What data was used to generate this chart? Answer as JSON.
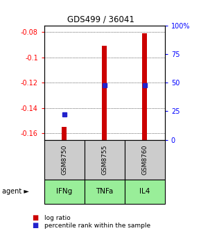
{
  "title": "GDS499 / 36041",
  "samples": [
    "GSM8750",
    "GSM8755",
    "GSM8760"
  ],
  "agents": [
    "IFNg",
    "TNFa",
    "IL4"
  ],
  "log_ratios": [
    -0.155,
    -0.091,
    -0.081
  ],
  "percentile_ranks": [
    22,
    48,
    48
  ],
  "ylim": [
    -0.165,
    -0.075
  ],
  "left_ticks": [
    -0.16,
    -0.14,
    -0.12,
    -0.1,
    -0.08
  ],
  "left_tick_labels": [
    "-0.16",
    "-0.14",
    "-0.12",
    "-0.1",
    "-0.08"
  ],
  "right_ticks_pct": [
    0,
    25,
    50,
    75,
    100
  ],
  "right_tick_labels": [
    "0",
    "25",
    "50",
    "75",
    "100%"
  ],
  "bar_color": "#cc0000",
  "dot_color": "#2222cc",
  "bar_width": 0.12,
  "sample_box_color": "#cccccc",
  "agent_box_color": "#99ee99",
  "legend_red_label": "log ratio",
  "legend_blue_label": "percentile rank within the sample",
  "agent_label": "agent"
}
